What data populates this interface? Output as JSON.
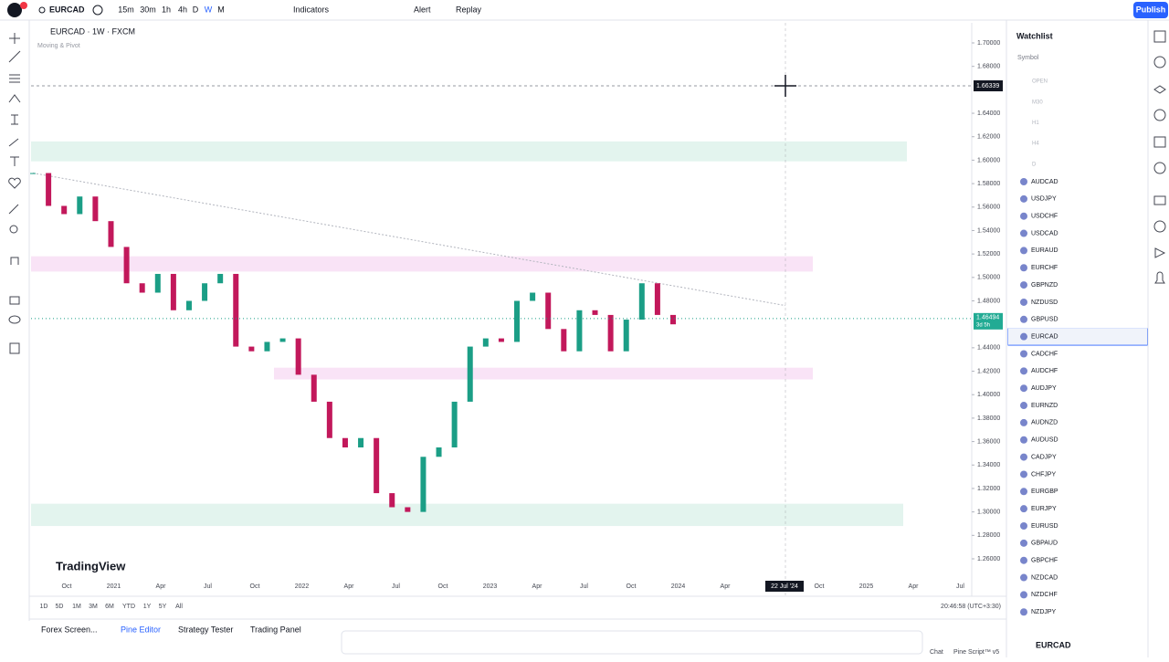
{
  "toolbar": {
    "symbol": "EURCAD",
    "intervals": [
      "15m",
      "30m",
      "1h",
      "4h",
      "D",
      "W",
      "M"
    ],
    "indicators": "Indicators",
    "alert": "Alert",
    "replay": "Replay",
    "publish": "Publish"
  },
  "chart": {
    "legend": "EURCAD · 1W · FXCM",
    "indicator": "Moving & Pivot",
    "logo": "TradingView",
    "ylim": [
      1.26,
      1.7
    ],
    "yticks": [
      {
        "value": 1.7,
        "label": "1.70000"
      },
      {
        "value": 1.68,
        "label": "1.68000"
      },
      {
        "value": 1.64,
        "label": "1.64000"
      },
      {
        "value": 1.62,
        "label": "1.62000"
      },
      {
        "value": 1.6,
        "label": "1.60000"
      },
      {
        "value": 1.58,
        "label": "1.58000"
      },
      {
        "value": 1.56,
        "label": "1.56000"
      },
      {
        "value": 1.54,
        "label": "1.54000"
      },
      {
        "value": 1.52,
        "label": "1.52000"
      },
      {
        "value": 1.5,
        "label": "1.50000"
      },
      {
        "value": 1.48,
        "label": "1.48000"
      },
      {
        "value": 1.44,
        "label": "1.44000"
      },
      {
        "value": 1.42,
        "label": "1.42000"
      },
      {
        "value": 1.4,
        "label": "1.40000"
      },
      {
        "value": 1.38,
        "label": "1.38000"
      },
      {
        "value": 1.36,
        "label": "1.36000"
      },
      {
        "value": 1.34,
        "label": "1.34000"
      },
      {
        "value": 1.32,
        "label": "1.32000"
      },
      {
        "value": 1.3,
        "label": "1.30000"
      },
      {
        "value": 1.28,
        "label": "1.28000"
      },
      {
        "value": 1.26,
        "label": "1.26000"
      }
    ],
    "time_labels": [
      "Oct",
      "2021",
      "Apr",
      "Jul",
      "Oct",
      "2022",
      "Apr",
      "Jul",
      "Oct",
      "2023",
      "Apr",
      "Jul",
      "Oct",
      "2024",
      "Apr",
      "Oct",
      "2025",
      "Apr",
      "Jul"
    ],
    "crosshair": {
      "price": {
        "value": 1.66339,
        "label": "1.66339"
      },
      "date": "22 Jul '24"
    },
    "last_price": {
      "value": 1.46494,
      "label": "1.46494"
    },
    "countdown": "3d 5h",
    "up_color": "#1b9e86",
    "down_color": "#c2185b",
    "closes": [
      1.589,
      1.561,
      1.554,
      1.569,
      1.548,
      1.526,
      1.495,
      1.487,
      1.503,
      1.472,
      1.48,
      1.495,
      1.503,
      1.441,
      1.437,
      1.445,
      1.448,
      1.417,
      1.394,
      1.363,
      1.355,
      1.363,
      1.316,
      1.304,
      1.3,
      1.347,
      1.355,
      1.394,
      1.441,
      1.448,
      1.445,
      1.48,
      1.487,
      1.456,
      1.437,
      1.472,
      1.468,
      1.437,
      1.464,
      1.495,
      1.468,
      1.46
    ],
    "zones": [
      {
        "from": 1.616,
        "to": 1.599,
        "color": "#e3f4ee"
      },
      {
        "from": 1.518,
        "to": 1.505,
        "color": "#f9e3f6"
      },
      {
        "from": 1.423,
        "to": 1.413,
        "color": "#f9e3f6"
      },
      {
        "from": 1.307,
        "to": 1.288,
        "color": "#e3f4ee"
      }
    ],
    "trendline": [
      1.589,
      1.476
    ]
  },
  "ranges": [
    "1D",
    "5D",
    "1M",
    "3M",
    "6M",
    "YTD",
    "1Y",
    "5Y",
    "All"
  ],
  "clock": "20:46:58 (UTC+3:30)",
  "tabs": [
    "Forex Screen...",
    "Pine Editor",
    "Strategy Tester",
    "Trading Panel"
  ],
  "watchlist": {
    "title": "Watchlist",
    "column": "Symbol",
    "groups": [
      "OPEN",
      "M30",
      "H1",
      "H4",
      "D"
    ],
    "symbols": [
      "AUDCAD",
      "USDJPY",
      "USDCHF",
      "USDCAD",
      "EURAUD",
      "EURCHF",
      "GBPNZD",
      "NZDUSD",
      "GBPUSD",
      "EURCAD",
      "CADCHF",
      "AUDCHF",
      "AUDJPY",
      "EURNZD",
      "AUDNZD",
      "AUDUSD",
      "CADJPY",
      "CHFJPY",
      "EURGBP",
      "EURJPY",
      "EURUSD",
      "GBPAUD",
      "GBPCHF",
      "NZDCAD",
      "NZDCHF",
      "NZDJPY"
    ],
    "selected": "EURCAD"
  },
  "footer": {
    "symbol": "EURCAD",
    "chat": "Chat",
    "pine": "Pine Script™ v5"
  }
}
